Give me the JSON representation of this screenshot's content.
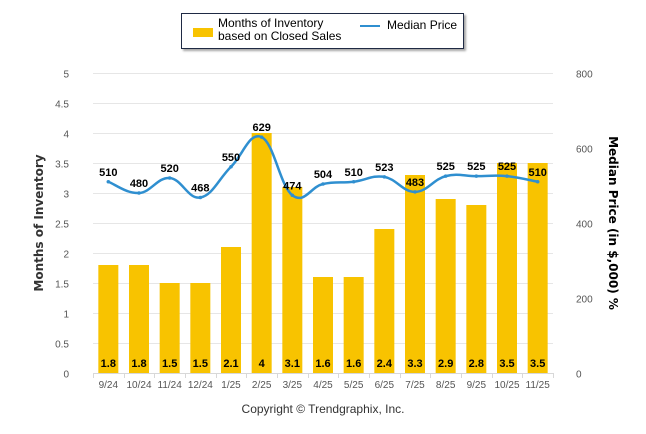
{
  "legend": {
    "bar_label": "Months of Inventory based on Closed Sales",
    "line_label": "Median Price"
  },
  "copyright": "Copyright © Trendgraphix, Inc.",
  "colors": {
    "bar": "#f8c300",
    "line": "#2f8fd0",
    "grid": "#e6e6e6",
    "axis_text": "#555555"
  },
  "chart_data": {
    "type": "bar",
    "title": "",
    "categories": [
      "9/24",
      "10/24",
      "11/24",
      "12/24",
      "1/25",
      "2/25",
      "3/25",
      "4/25",
      "5/25",
      "6/25",
      "7/25",
      "8/25",
      "9/25",
      "10/25",
      "11/25"
    ],
    "series": [
      {
        "name": "Months of Inventory based on Closed Sales",
        "type": "bar",
        "axis": "left",
        "values": [
          1.8,
          1.8,
          1.5,
          1.5,
          2.1,
          4,
          3.1,
          1.6,
          1.6,
          2.4,
          3.3,
          2.9,
          2.8,
          3.5,
          3.5
        ],
        "labels": [
          "1.8",
          "1.8",
          "1.5",
          "1.5",
          "2.1",
          "4",
          "3.1",
          "1.6",
          "1.6",
          "2.4",
          "3.3",
          "2.9",
          "2.8",
          "3.5",
          "3.5"
        ]
      },
      {
        "name": "Median Price",
        "type": "line",
        "axis": "right",
        "values": [
          510,
          480,
          520,
          468,
          550,
          629,
          474,
          504,
          510,
          523,
          483,
          525,
          525,
          525,
          510
        ],
        "labels": [
          "510",
          "480",
          "520",
          "468",
          "550",
          "629",
          "474",
          "504",
          "510",
          "523",
          "483",
          "525",
          "525",
          "525",
          "510"
        ]
      }
    ],
    "xlabel": "",
    "ylabel": "Months of Inventory",
    "y2label": "Median Price (in $,000) %",
    "ylim": [
      0,
      5
    ],
    "y2lim": [
      0,
      800
    ],
    "yticks": [
      "0",
      "0.5",
      "1",
      "1.5",
      "2",
      "2.5",
      "3",
      "3.5",
      "4",
      "4.5",
      "5"
    ],
    "y2ticks": [
      "0",
      "200",
      "400",
      "600",
      "800"
    ],
    "grid": true,
    "legend_position": "top-center"
  }
}
